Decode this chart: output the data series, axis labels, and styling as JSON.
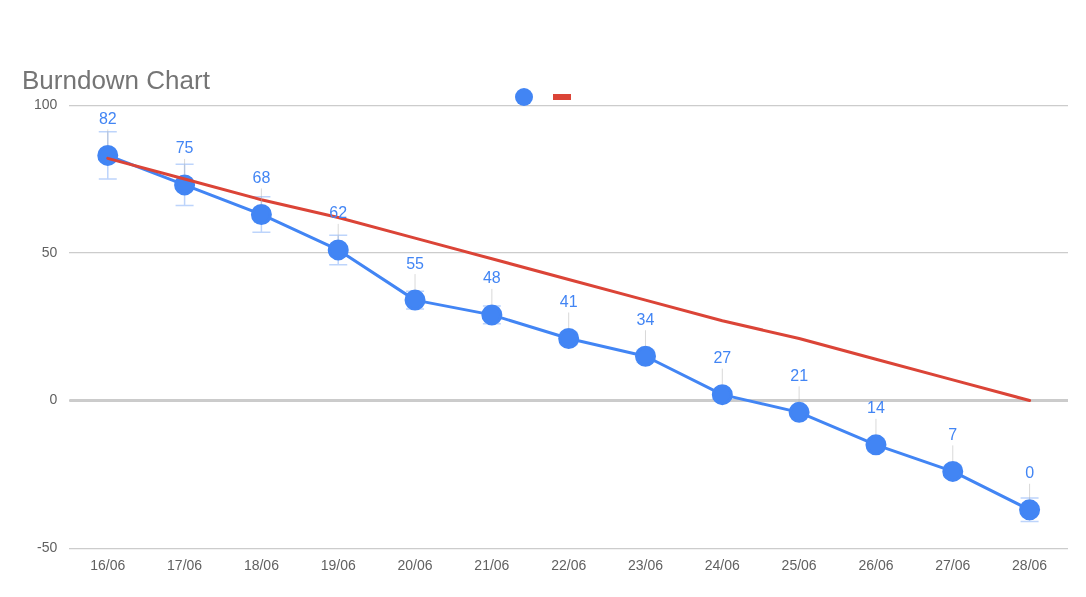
{
  "chart_data": {
    "type": "line",
    "title": "Burndown Chart",
    "categories": [
      "16/06",
      "17/06",
      "18/06",
      "19/06",
      "20/06",
      "21/06",
      "22/06",
      "23/06",
      "24/06",
      "25/06",
      "26/06",
      "27/06",
      "28/06"
    ],
    "series": [
      {
        "color": "#4285f4",
        "marker": "circle",
        "values": [
          83,
          73,
          63,
          51,
          34,
          29,
          21,
          15,
          2,
          -4,
          -15,
          -24,
          -37
        ],
        "errors": [
          8,
          7,
          6,
          5,
          3,
          3,
          2,
          2,
          null,
          null,
          2,
          2,
          4
        ]
      },
      {
        "color": "#db4437",
        "marker": "none",
        "values": [
          82,
          75,
          68,
          62,
          55,
          48,
          41,
          34,
          27,
          21,
          14,
          7,
          0
        ]
      }
    ],
    "annotations": [
      {
        "text": "82",
        "x": "16/06",
        "y": 83
      },
      {
        "text": "75",
        "x": "17/06",
        "y": 73
      },
      {
        "text": "68",
        "x": "18/06",
        "y": 63
      },
      {
        "text": "62",
        "x": "19/06",
        "y": 51
      },
      {
        "text": "55",
        "x": "20/06",
        "y": 34
      },
      {
        "text": "48",
        "x": "21/06",
        "y": 29
      },
      {
        "text": "41",
        "x": "22/06",
        "y": 21
      },
      {
        "text": "34",
        "x": "23/06",
        "y": 15
      },
      {
        "text": "27",
        "x": "24/06",
        "y": 2
      },
      {
        "text": "21",
        "x": "25/06",
        "y": -4
      },
      {
        "text": "14",
        "x": "26/06",
        "y": -15
      },
      {
        "text": "7",
        "x": "27/06",
        "y": -24
      },
      {
        "text": "0",
        "x": "28/06",
        "y": -37
      }
    ],
    "ref_lines": [
      {
        "axis": "y",
        "value": 0,
        "color": "#333333"
      }
    ],
    "ylim": [
      -50,
      100
    ],
    "yticks": [
      -50,
      0,
      50,
      100
    ],
    "grid": "y"
  }
}
